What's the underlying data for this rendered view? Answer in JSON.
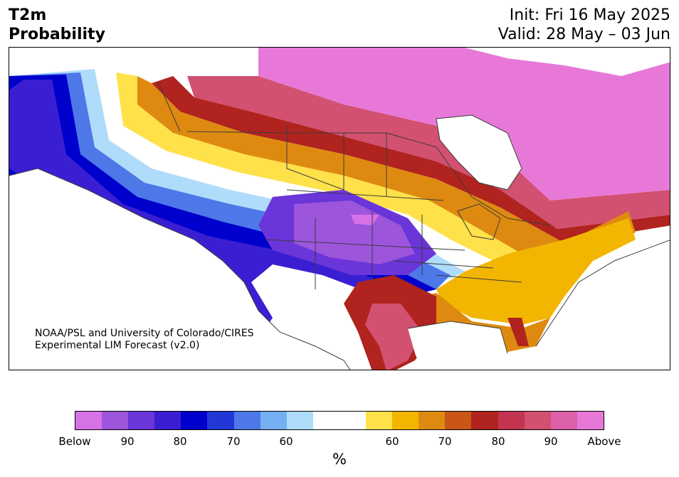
{
  "header": {
    "variable": "T2m",
    "product": "Probability",
    "init": "Init: Fri 16 May 2025",
    "valid": "Valid: 28 May – 03 Jun"
  },
  "credit": {
    "line1": "NOAA/PSL and University of Colorado/CIRES",
    "line2": "Experimental LIM Forecast (v2.0)"
  },
  "colorbar": {
    "unit": "%",
    "colors": [
      "#d671e6",
      "#9c55db",
      "#6a35d9",
      "#3a1fd2",
      "#0000cc",
      "#2238d6",
      "#4e78e8",
      "#76b0f2",
      "#b0dcfb",
      "#ffffff",
      "#ffffff",
      "#ffe14a",
      "#f2b600",
      "#de8a10",
      "#c95516",
      "#b0231e",
      "#c23450",
      "#d25070",
      "#dc60a8",
      "#e878d8"
    ],
    "ticks": [
      "Below",
      "90",
      "80",
      "70",
      "60",
      "60",
      "70",
      "80",
      "90",
      "Above"
    ]
  }
}
